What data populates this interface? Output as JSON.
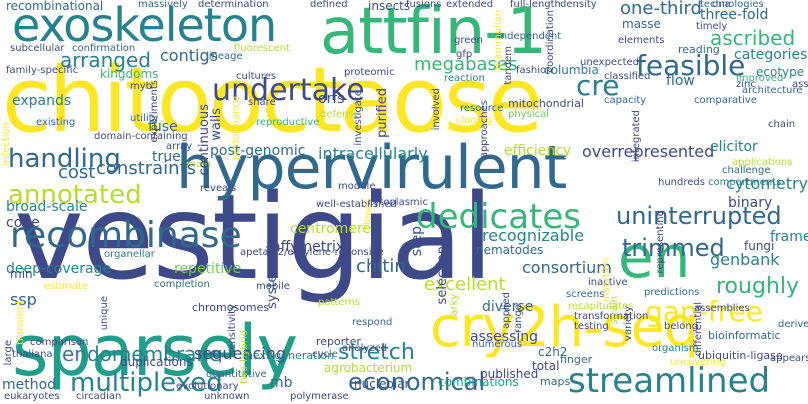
{
  "palette": {
    "yellow": "#fde725",
    "lime": "#b5de2b",
    "green": "#6ece58",
    "teal_green": "#35b779",
    "teal": "#1f9e89",
    "blue_teal": "#26828e",
    "steel": "#31688e",
    "indigo": "#3e4989",
    "purple": "#482878",
    "deep_purple": "#440154"
  },
  "words": [
    {
      "text": "vestigial",
      "color": "#3e4989"
    },
    {
      "text": "chitooctaose",
      "color": "#fde725"
    },
    {
      "text": "hypervirulent",
      "color": "#31688e"
    },
    {
      "text": "sparsely",
      "color": "#1f9e89"
    },
    {
      "text": "exoskeleton",
      "color": "#26828e"
    },
    {
      "text": "attfin-1",
      "color": "#35b779"
    },
    {
      "text": "cry2h-seq",
      "color": "#fde725"
    },
    {
      "text": "recombinase",
      "color": "#31688e"
    },
    {
      "text": "en",
      "color": "#35b779"
    },
    {
      "text": "streamlined",
      "color": "#26828e"
    },
    {
      "text": "uninterrupted",
      "color": "#31688e"
    },
    {
      "text": "dedicates",
      "color": "#35b779"
    },
    {
      "text": "undertake",
      "color": "#3e4989"
    },
    {
      "text": "handling",
      "color": "#31688e"
    },
    {
      "text": "annotated",
      "color": "#b5de2b"
    },
    {
      "text": "multiplexed",
      "color": "#26828e"
    },
    {
      "text": "economical",
      "color": "#31688e"
    },
    {
      "text": "endomembrane",
      "color": "#26828e"
    },
    {
      "text": "feasible",
      "color": "#31688e"
    },
    {
      "text": "gap-free",
      "color": "#fde725"
    },
    {
      "text": "trimmed",
      "color": "#31688e"
    },
    {
      "text": "roughly",
      "color": "#35b779"
    },
    {
      "text": "cre",
      "color": "#26828e"
    },
    {
      "text": "ascribed",
      "color": "#35b779"
    },
    {
      "text": "three-fold",
      "color": "#31688e"
    },
    {
      "text": "one-third",
      "color": "#31688e"
    },
    {
      "text": "stretch",
      "color": "#26828e"
    },
    {
      "text": "chitin",
      "color": "#31688e"
    },
    {
      "text": "sequencing",
      "color": "#3e4989"
    },
    {
      "text": "arranged",
      "color": "#26828e"
    },
    {
      "text": "contigs",
      "color": "#31688e"
    },
    {
      "text": "cost",
      "color": "#31688e"
    },
    {
      "text": "constraints",
      "color": "#31688e"
    },
    {
      "text": "intracellularly",
      "color": "#26828e"
    },
    {
      "text": "post-genomic",
      "color": "#31688e"
    },
    {
      "text": "overrepresented",
      "color": "#3e4989"
    },
    {
      "text": "efficiency",
      "color": "#b5de2b"
    },
    {
      "text": "megabases",
      "color": "#35b779"
    },
    {
      "text": "excellent",
      "color": "#b5de2b"
    },
    {
      "text": "consortium",
      "color": "#31688e"
    },
    {
      "text": "deep-coverage",
      "color": "#26828e"
    },
    {
      "text": "broad-scale",
      "color": "#26828e"
    },
    {
      "text": "code",
      "color": "#3e4989"
    },
    {
      "text": "recognizable",
      "color": "#26828e"
    },
    {
      "text": "cytometry",
      "color": "#26828e"
    },
    {
      "text": "genbank",
      "color": "#26828e"
    },
    {
      "text": "binary",
      "color": "#3e4989"
    },
    {
      "text": "elicitor",
      "color": "#26828e"
    },
    {
      "text": "ecotype",
      "color": "#26828e"
    },
    {
      "text": "categories",
      "color": "#26828e"
    },
    {
      "text": "flow",
      "color": "#31688e"
    },
    {
      "text": "frame",
      "color": "#26828e"
    },
    {
      "text": "fungi",
      "color": "#3e4989"
    },
    {
      "text": "ssp",
      "color": "#31688e"
    },
    {
      "text": "min",
      "color": "#3e4989"
    },
    {
      "text": "method",
      "color": "#31688e"
    },
    {
      "text": "combinations",
      "color": "#1f9e89"
    },
    {
      "text": "nucleolar",
      "color": "#3e4989"
    },
    {
      "text": "mb",
      "color": "#31688e"
    },
    {
      "text": "diverse",
      "color": "#31688e"
    },
    {
      "text": "assessing",
      "color": "#3e4989"
    },
    {
      "text": "c2h2",
      "color": "#31688e"
    },
    {
      "text": "total",
      "color": "#3e4989"
    },
    {
      "text": "affymetrix",
      "color": "#3e4989"
    },
    {
      "text": "centromere",
      "color": "#b5de2b"
    },
    {
      "text": "nematodes",
      "color": "#31688e"
    },
    {
      "text": "repetitive",
      "color": "#6ece58"
    },
    {
      "text": "fuse",
      "color": "#31688e"
    },
    {
      "text": "true",
      "color": "#31688e"
    },
    {
      "text": "expands",
      "color": "#26828e"
    },
    {
      "text": "orfs",
      "color": "#3e4989"
    },
    {
      "text": "kingdoms",
      "color": "#35b779"
    },
    {
      "text": "columbia",
      "color": "#26828e"
    },
    {
      "text": "masse",
      "color": "#31688e"
    },
    {
      "text": "insects",
      "color": "#3e4989"
    },
    {
      "text": "recombinational",
      "color": "#31688e"
    },
    {
      "text": "next-generation",
      "color": "#26828e"
    },
    {
      "text": "duplications",
      "color": "#3e4989"
    },
    {
      "text": "chromosomes",
      "color": "#3e4989"
    },
    {
      "text": "agrobacterium",
      "color": "#b5de2b"
    },
    {
      "text": "published",
      "color": "#3e4989"
    },
    {
      "text": "reporter",
      "color": "#3e4989"
    },
    {
      "text": "polymerase",
      "color": "#3e4989"
    },
    {
      "text": "ubiquitin-ligase",
      "color": "#3e4989"
    },
    {
      "text": "bioinformatic",
      "color": "#31688e"
    },
    {
      "text": "appears",
      "color": "#3e4989"
    },
    {
      "text": "derived",
      "color": "#31688e"
    },
    {
      "text": "finger",
      "color": "#31688e"
    },
    {
      "text": "maps",
      "color": "#31688e"
    },
    {
      "text": "numerous",
      "color": "#31688e"
    },
    {
      "text": "uncovering",
      "color": "#fde725"
    },
    {
      "text": "organism",
      "color": "#26828e"
    },
    {
      "text": "cycle",
      "color": "#31688e"
    },
    {
      "text": "analyzed",
      "color": "#3e4989"
    },
    {
      "text": "respond",
      "color": "#31688e"
    },
    {
      "text": "patterns",
      "color": "#b5de2b"
    },
    {
      "text": "screens",
      "color": "#31688e"
    },
    {
      "text": "inactive",
      "color": "#3e4989"
    },
    {
      "text": "assemblies",
      "color": "#3e4989"
    },
    {
      "text": "challenge",
      "color": "#31688e"
    },
    {
      "text": "hundreds",
      "color": "#3e4989"
    },
    {
      "text": "compartments",
      "color": "#26828e"
    },
    {
      "text": "applications",
      "color": "#b5de2b"
    },
    {
      "text": "associations",
      "color": "#3e4989"
    },
    {
      "text": "chain",
      "color": "#3e4989"
    },
    {
      "text": "architecture",
      "color": "#31688e"
    },
    {
      "text": "improved",
      "color": "#35b779"
    },
    {
      "text": "zinc",
      "color": "#3e4989"
    },
    {
      "text": "comparative",
      "color": "#31688e"
    },
    {
      "text": "capacity",
      "color": "#31688e"
    },
    {
      "text": "mitochondrial",
      "color": "#3e4989"
    },
    {
      "text": "resource",
      "color": "#31688e"
    },
    {
      "text": "physical",
      "color": "#6ece58"
    },
    {
      "text": "cloning",
      "color": "#fde725"
    },
    {
      "text": "reaction",
      "color": "#26828e"
    },
    {
      "text": "classified",
      "color": "#3e4989"
    },
    {
      "text": "fashion",
      "color": "#3e4989"
    },
    {
      "text": "elements",
      "color": "#3e4989"
    },
    {
      "text": "reading",
      "color": "#31688e"
    },
    {
      "text": "unexpected",
      "color": "#3e4989"
    },
    {
      "text": "independent",
      "color": "#31688e"
    },
    {
      "text": "green",
      "color": "#3e4989"
    },
    {
      "text": "gfp",
      "color": "#3e4989"
    },
    {
      "text": "proteomic",
      "color": "#3e4989"
    },
    {
      "text": "cultures",
      "color": "#3e4989"
    },
    {
      "text": "lineage",
      "color": "#31688e"
    },
    {
      "text": "fluorescent",
      "color": "#b5de2b"
    },
    {
      "text": "confirmation",
      "color": "#31688e"
    },
    {
      "text": "subcellular",
      "color": "#3e4989"
    },
    {
      "text": "family-specific",
      "color": "#3e4989"
    },
    {
      "text": "myb",
      "color": "#3e4989"
    },
    {
      "text": "existing",
      "color": "#31688e"
    },
    {
      "text": "domain-containing",
      "color": "#3e4989"
    },
    {
      "text": "utility",
      "color": "#31688e"
    },
    {
      "text": "share",
      "color": "#3e4989"
    },
    {
      "text": "reproductive",
      "color": "#35b779"
    },
    {
      "text": "defense",
      "color": "#b5de2b"
    },
    {
      "text": "array",
      "color": "#3e4989"
    },
    {
      "text": "main",
      "color": "#b5de2b"
    },
    {
      "text": "organellar",
      "color": "#26828e"
    },
    {
      "text": "estimate",
      "color": "#fde725"
    },
    {
      "text": "thaliana",
      "color": "#3e4989"
    },
    {
      "text": "comparison",
      "color": "#3e4989"
    },
    {
      "text": "eukaryotes",
      "color": "#3e4989"
    },
    {
      "text": "circadian",
      "color": "#3e4989"
    },
    {
      "text": "evolutionary",
      "color": "#3e4989"
    },
    {
      "text": "quantitative",
      "color": "#31688e"
    },
    {
      "text": "unknown",
      "color": "#3e4989"
    },
    {
      "text": "completion",
      "color": "#31688e"
    },
    {
      "text": "reveals",
      "color": "#3e4989"
    },
    {
      "text": "apetala2/ethylene-reponsive",
      "color": "#3e4989"
    },
    {
      "text": "well-established",
      "color": "#3e4989"
    },
    {
      "text": "cytoplasmic",
      "color": "#3e4989"
    },
    {
      "text": "mobile",
      "color": "#3e4989"
    },
    {
      "text": "module",
      "color": "#3e4989"
    },
    {
      "text": "dna",
      "color": "#3e4989"
    },
    {
      "text": "timely",
      "color": "#3e4989"
    },
    {
      "text": "density",
      "color": "#3e4989"
    },
    {
      "text": "full-length",
      "color": "#3e4989"
    },
    {
      "text": "extended",
      "color": "#3e4989"
    },
    {
      "text": "fusions",
      "color": "#3e4989"
    },
    {
      "text": "defined",
      "color": "#3e4989"
    },
    {
      "text": "determination",
      "color": "#3e4989"
    },
    {
      "text": "massively",
      "color": "#31688e"
    },
    {
      "text": "technologies",
      "color": "#31688e"
    },
    {
      "text": "predictions",
      "color": "#31688e"
    },
    {
      "text": "recapitulates",
      "color": "#b5de2b"
    },
    {
      "text": "transformation",
      "color": "#3e4989"
    },
    {
      "text": "testing",
      "color": "#3e4989"
    },
    {
      "text": "belong",
      "color": "#3e4989"
    },
    {
      "text": "step",
      "color": "#3e4989"
    },
    {
      "text": "purified",
      "color": "#3e4989"
    },
    {
      "text": "selection",
      "color": "#3e4989"
    },
    {
      "text": "systematic",
      "color": "#3e4989"
    },
    {
      "text": "continuous",
      "color": "#3e4989"
    },
    {
      "text": "walls",
      "color": "#3e4989"
    },
    {
      "text": "investigate",
      "color": "#3e4989"
    },
    {
      "text": "clones",
      "color": "#fde725"
    },
    {
      "text": "mammalian",
      "color": "#fde725"
    },
    {
      "text": "tandem",
      "color": "#3e4989"
    },
    {
      "text": "coordination",
      "color": "#3e4989"
    },
    {
      "text": "insertion",
      "color": "#fde725"
    },
    {
      "text": "strain",
      "color": "#b5de2b"
    },
    {
      "text": "applied",
      "color": "#3e4989"
    },
    {
      "text": "range",
      "color": "#3e4989"
    },
    {
      "text": "variety",
      "color": "#3e4989"
    },
    {
      "text": "representing",
      "color": "#3e4989"
    },
    {
      "text": "integrated",
      "color": "#3e4989"
    },
    {
      "text": "approaches",
      "color": "#3e4989"
    },
    {
      "text": "experiments",
      "color": "#3e4989"
    },
    {
      "text": "involved",
      "color": "#3e4989"
    },
    {
      "text": "large",
      "color": "#3e4989"
    },
    {
      "text": "transient",
      "color": "#fde725"
    },
    {
      "text": "unique",
      "color": "#3e4989"
    },
    {
      "text": "infection",
      "color": "#fde725"
    },
    {
      "text": "sensitivity",
      "color": "#3e4989"
    },
    {
      "text": "two-hybrid",
      "color": "#b5de2b"
    },
    {
      "text": "arky",
      "color": "#b5de2b"
    },
    {
      "text": "differential",
      "color": "#3e4989"
    },
    {
      "text": "performance",
      "color": "#fde725"
    }
  ]
}
